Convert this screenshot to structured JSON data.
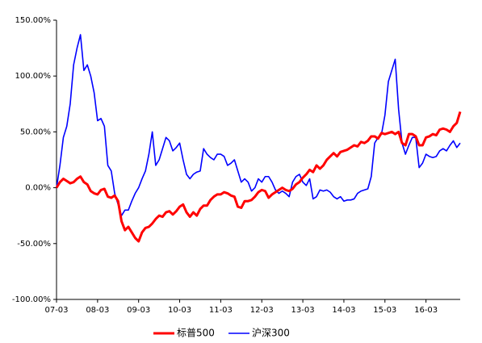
{
  "chart_data": {
    "type": "line",
    "categories": [
      "07-03",
      null,
      null,
      null,
      null,
      null,
      null,
      null,
      null,
      null,
      null,
      null,
      "08-03",
      null,
      null,
      null,
      null,
      null,
      null,
      null,
      null,
      null,
      null,
      null,
      "09-03",
      null,
      null,
      null,
      null,
      null,
      null,
      null,
      null,
      null,
      null,
      null,
      "10-03",
      null,
      null,
      null,
      null,
      null,
      null,
      null,
      null,
      null,
      null,
      null,
      "11-03",
      null,
      null,
      null,
      null,
      null,
      null,
      null,
      null,
      null,
      null,
      null,
      "12-03",
      null,
      null,
      null,
      null,
      null,
      null,
      null,
      null,
      null,
      null,
      null,
      "13-03",
      null,
      null,
      null,
      null,
      null,
      null,
      null,
      null,
      null,
      null,
      null,
      "14-03",
      null,
      null,
      null,
      null,
      null,
      null,
      null,
      null,
      null,
      null,
      null,
      "15-03",
      null,
      null,
      null,
      null,
      null,
      null,
      null,
      null,
      null,
      null,
      null,
      "16-03",
      null,
      null,
      null,
      null,
      null,
      null,
      null,
      null,
      null,
      null
    ],
    "series": [
      {
        "name": "标普500",
        "color": "#ff0000",
        "values": [
          0,
          5,
          8,
          6,
          4,
          5,
          8,
          10,
          5,
          3,
          -3,
          -5,
          -6,
          -2,
          -1,
          -8,
          -9,
          -7,
          -12,
          -30,
          -38,
          -35,
          -40,
          -45,
          -48,
          -40,
          -36,
          -35,
          -32,
          -28,
          -25,
          -26,
          -22,
          -21,
          -24,
          -21,
          -17,
          -15,
          -22,
          -26,
          -22,
          -25,
          -19,
          -16,
          -16,
          -11,
          -8,
          -6,
          -6,
          -4,
          -5,
          -7,
          -8,
          -17,
          -18,
          -12,
          -12,
          -11,
          -8,
          -4,
          -2,
          -3,
          -9,
          -6,
          -4,
          -2,
          0,
          -2,
          -3,
          -1,
          3,
          5,
          9,
          12,
          16,
          14,
          20,
          17,
          20,
          25,
          28,
          31,
          28,
          32,
          33,
          34,
          36,
          38,
          37,
          41,
          40,
          42,
          46,
          46,
          44,
          49,
          48,
          49,
          50,
          48,
          50,
          40,
          38,
          48,
          48,
          46,
          38,
          38,
          45,
          46,
          48,
          47,
          52,
          53,
          52,
          50,
          55,
          58,
          68
        ]
      },
      {
        "name": "沪深300",
        "color": "#0000ff",
        "values": [
          0,
          20,
          45,
          55,
          75,
          110,
          125,
          137,
          105,
          110,
          100,
          85,
          60,
          62,
          55,
          20,
          15,
          -5,
          -15,
          -25,
          -20,
          -20,
          -12,
          -5,
          0,
          8,
          15,
          30,
          50,
          20,
          25,
          35,
          45,
          42,
          33,
          36,
          40,
          25,
          12,
          8,
          12,
          14,
          15,
          35,
          30,
          27,
          25,
          30,
          30,
          28,
          20,
          22,
          25,
          15,
          5,
          8,
          5,
          -3,
          0,
          8,
          5,
          10,
          10,
          5,
          -2,
          -5,
          -3,
          -5,
          -8,
          5,
          10,
          12,
          5,
          2,
          8,
          -10,
          -8,
          -2,
          -3,
          -2,
          -4,
          -8,
          -10,
          -8,
          -12,
          -11,
          -11,
          -10,
          -5,
          -3,
          -2,
          -1,
          10,
          40,
          45,
          48,
          65,
          95,
          105,
          115,
          70,
          40,
          30,
          38,
          45,
          45,
          18,
          22,
          30,
          28,
          27,
          28,
          33,
          35,
          33,
          38,
          42,
          36,
          40
        ]
      }
    ],
    "ylim": [
      -100,
      150
    ],
    "yticks": [
      {
        "value": -100,
        "label": "-100.00%"
      },
      {
        "value": -50,
        "label": "-50.00%"
      },
      {
        "value": 0,
        "label": "0.00%"
      },
      {
        "value": 50,
        "label": "50.00%"
      },
      {
        "value": 100,
        "label": "100.00%"
      },
      {
        "value": 150,
        "label": "150.00%"
      }
    ],
    "grid": false,
    "legend": "bottom"
  }
}
